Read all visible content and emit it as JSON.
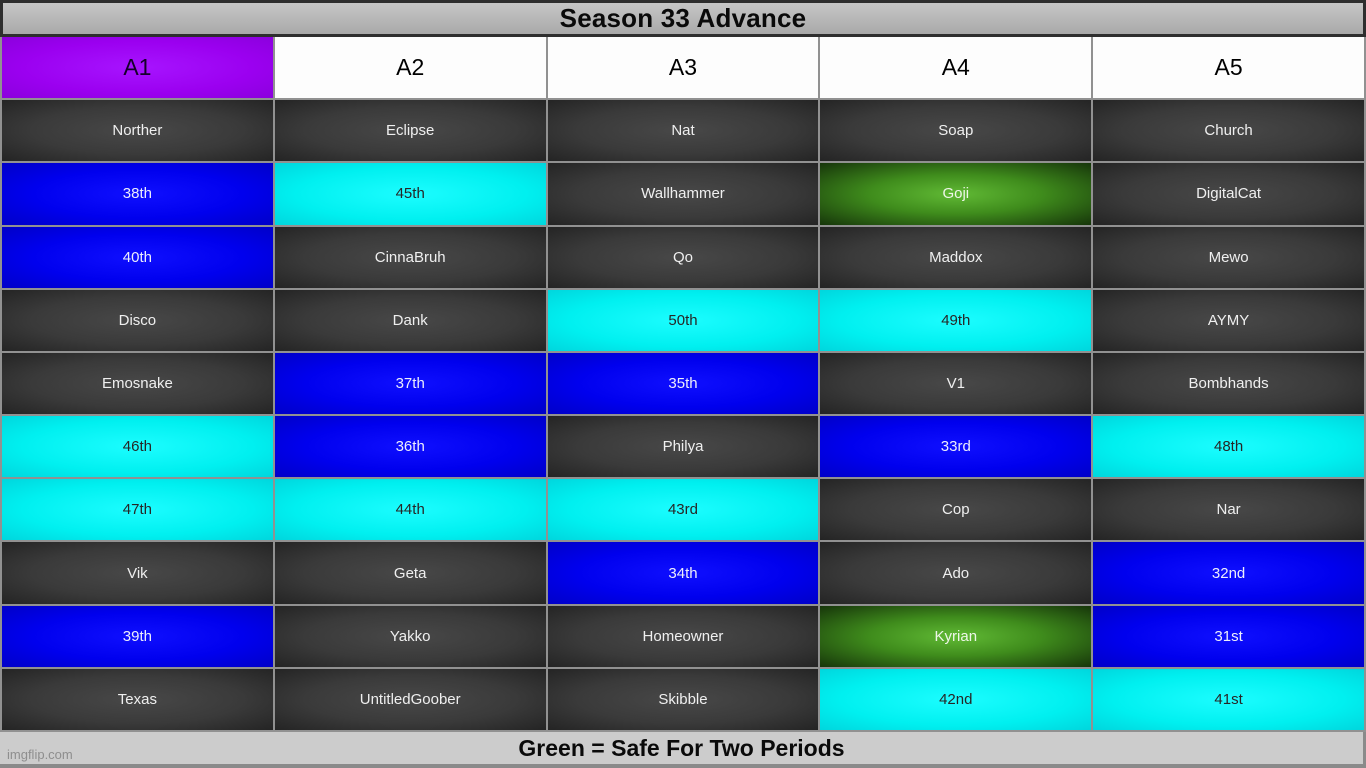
{
  "chart_data": {
    "type": "table",
    "title": "Season 33 Advance",
    "legend": "Green = Safe For Two Periods",
    "color_meaning": {
      "green": "Safe For Two Periods"
    },
    "columns": [
      {
        "label": "A1",
        "color": "purple"
      },
      {
        "label": "A2",
        "color": "white"
      },
      {
        "label": "A3",
        "color": "white"
      },
      {
        "label": "A4",
        "color": "white"
      },
      {
        "label": "A5",
        "color": "white"
      }
    ],
    "rows": [
      [
        {
          "label": "Norther",
          "color": "dark"
        },
        {
          "label": "Eclipse",
          "color": "dark"
        },
        {
          "label": "Nat",
          "color": "dark"
        },
        {
          "label": "Soap",
          "color": "dark"
        },
        {
          "label": "Church",
          "color": "dark"
        }
      ],
      [
        {
          "label": "38th",
          "color": "blue"
        },
        {
          "label": "45th",
          "color": "cyan"
        },
        {
          "label": "Wallhammer",
          "color": "dark"
        },
        {
          "label": "Goji",
          "color": "green"
        },
        {
          "label": "DigitalCat",
          "color": "dark"
        }
      ],
      [
        {
          "label": "40th",
          "color": "blue"
        },
        {
          "label": "CinnaBruh",
          "color": "dark"
        },
        {
          "label": "Qo",
          "color": "dark"
        },
        {
          "label": "Maddox",
          "color": "dark"
        },
        {
          "label": "Mewo",
          "color": "dark"
        }
      ],
      [
        {
          "label": "Disco",
          "color": "dark"
        },
        {
          "label": "Dank",
          "color": "dark"
        },
        {
          "label": "50th",
          "color": "cyan"
        },
        {
          "label": "49th",
          "color": "cyan"
        },
        {
          "label": "AYMY",
          "color": "dark"
        }
      ],
      [
        {
          "label": "Emosnake",
          "color": "dark"
        },
        {
          "label": "37th",
          "color": "blue"
        },
        {
          "label": "35th",
          "color": "blue"
        },
        {
          "label": "V1",
          "color": "dark"
        },
        {
          "label": "Bombhands",
          "color": "dark"
        }
      ],
      [
        {
          "label": "46th",
          "color": "cyan"
        },
        {
          "label": "36th",
          "color": "blue"
        },
        {
          "label": "Philya",
          "color": "dark"
        },
        {
          "label": "33rd",
          "color": "blue"
        },
        {
          "label": "48th",
          "color": "cyan"
        }
      ],
      [
        {
          "label": "47th",
          "color": "cyan"
        },
        {
          "label": "44th",
          "color": "cyan"
        },
        {
          "label": "43rd",
          "color": "cyan"
        },
        {
          "label": "Cop",
          "color": "dark"
        },
        {
          "label": "Nar",
          "color": "dark"
        }
      ],
      [
        {
          "label": "Vik",
          "color": "dark"
        },
        {
          "label": "Geta",
          "color": "dark"
        },
        {
          "label": "34th",
          "color": "blue"
        },
        {
          "label": "Ado",
          "color": "dark"
        },
        {
          "label": "32nd",
          "color": "blue"
        }
      ],
      [
        {
          "label": "39th",
          "color": "blue"
        },
        {
          "label": "Yakko",
          "color": "dark"
        },
        {
          "label": "Homeowner",
          "color": "dark"
        },
        {
          "label": "Kyrian",
          "color": "green"
        },
        {
          "label": "31st",
          "color": "blue"
        }
      ],
      [
        {
          "label": "Texas",
          "color": "dark"
        },
        {
          "label": "UntitledGoober",
          "color": "dark"
        },
        {
          "label": "Skibble",
          "color": "dark"
        },
        {
          "label": "42nd",
          "color": "cyan"
        },
        {
          "label": "41st",
          "color": "cyan"
        }
      ]
    ]
  },
  "footer": {
    "caption": "Green = Safe For Two Periods",
    "watermark": "imgflip.com"
  },
  "colors": {
    "purple": "#9b00f0",
    "blue": "#0000ee",
    "cyan": "#00f0f0",
    "dark": "#3a3a3a",
    "green": "#3f8c1c",
    "header_white": "#fdfdfd",
    "grid_line": "#919191",
    "title_bg": "#b9b9b9",
    "caption_bg": "#cccccc"
  }
}
